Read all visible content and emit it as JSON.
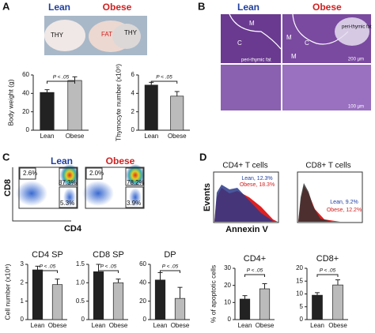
{
  "panel_labels": [
    "A",
    "B",
    "C",
    "D"
  ],
  "photo": {
    "lean": "Lean",
    "obese": "Obese",
    "labels": [
      "THY",
      "FAT",
      "THY"
    ]
  },
  "histology": {
    "lean": "Lean",
    "obese": "Obese",
    "labels": [
      "M",
      "C",
      "M",
      "C",
      "M",
      "peri-thymic fat",
      "peri-thymic fat"
    ],
    "scales": [
      "200 µm",
      "100 µm"
    ]
  },
  "flow": {
    "lean": "Lean",
    "obese": "Obese",
    "y_label": "CD8",
    "x_label": "CD4",
    "lean_gates": [
      "2.6%",
      "87.3%",
      "5.3%"
    ],
    "obese_gates": [
      "2.0%",
      "78.2%",
      "3.9%"
    ]
  },
  "annexin": {
    "titles": [
      "CD4+ T cells",
      "CD8+ T cells"
    ],
    "y_label": "Events",
    "x_label": "Annexin V",
    "cd4_legend": [
      "Lean, 12.3%",
      "Obese, 18.3%"
    ],
    "cd8_legend": [
      "Lean, 9.2%",
      "Obese, 12.2%"
    ]
  },
  "chart_data": [
    {
      "type": "bar",
      "ylabel": "Body weight (g)",
      "categories": [
        "Lean",
        "Obese"
      ],
      "values": [
        41,
        54
      ],
      "errors": [
        3,
        4
      ],
      "colors": [
        "#222222",
        "#bbbbbb"
      ],
      "ylim": [
        0,
        60
      ],
      "yticks": [
        0,
        20,
        40,
        60
      ],
      "annotation": "P < .05"
    },
    {
      "type": "bar",
      "ylabel": "Thymocyte number (x10⁸)",
      "categories": [
        "Lean",
        "Obese"
      ],
      "values": [
        4.9,
        3.7
      ],
      "errors": [
        0.3,
        0.5
      ],
      "colors": [
        "#222222",
        "#bbbbbb"
      ],
      "ylim": [
        0,
        6
      ],
      "yticks": [
        0,
        2,
        4,
        6
      ],
      "annotation": "P < .05"
    },
    {
      "type": "bar",
      "title": "CD4 SP",
      "ylabel": "Cell number (x10⁶)",
      "categories": [
        "Lean",
        "Obese"
      ],
      "values": [
        2.7,
        1.9
      ],
      "errors": [
        0.2,
        0.3
      ],
      "colors": [
        "#222222",
        "#bbbbbb"
      ],
      "ylim": [
        0,
        3
      ],
      "yticks": [
        0,
        1,
        2,
        3
      ],
      "annotation": "P < .05"
    },
    {
      "type": "bar",
      "title": "CD8 SP",
      "categories": [
        "Lean",
        "Obese"
      ],
      "values": [
        1.3,
        1.0
      ],
      "errors": [
        0.2,
        0.1
      ],
      "colors": [
        "#222222",
        "#bbbbbb"
      ],
      "ylim": [
        0,
        1.5
      ],
      "yticks": [
        0,
        0.5,
        {
          "value": 1,
          "label": "1.0"
        },
        1.5
      ],
      "annotation": "P < .05"
    },
    {
      "type": "bar",
      "title": "DP",
      "categories": [
        "Lean",
        "Obese"
      ],
      "values": [
        43,
        23
      ],
      "errors": [
        8,
        12
      ],
      "colors": [
        "#222222",
        "#bbbbbb"
      ],
      "ylim": [
        0,
        60
      ],
      "yticks": [
        0,
        20,
        40,
        60
      ],
      "annotation": "P < .05"
    },
    {
      "type": "bar",
      "title": "CD4+",
      "ylabel": "% of apoptotic cells",
      "categories": [
        "Lean",
        "Obese"
      ],
      "values": [
        12,
        18
      ],
      "errors": [
        2,
        3
      ],
      "colors": [
        "#222222",
        "#bbbbbb"
      ],
      "ylim": [
        0,
        30
      ],
      "yticks": [
        0,
        10,
        20,
        30
      ],
      "annotation": "P < .05"
    },
    {
      "type": "bar",
      "title": "CD8+",
      "categories": [
        "Lean",
        "Obese"
      ],
      "values": [
        9.5,
        13.5
      ],
      "errors": [
        1,
        2
      ],
      "colors": [
        "#222222",
        "#bbbbbb"
      ],
      "ylim": [
        0,
        20
      ],
      "yticks": [
        0,
        5,
        10,
        15,
        20
      ],
      "annotation": "P < .05"
    }
  ]
}
